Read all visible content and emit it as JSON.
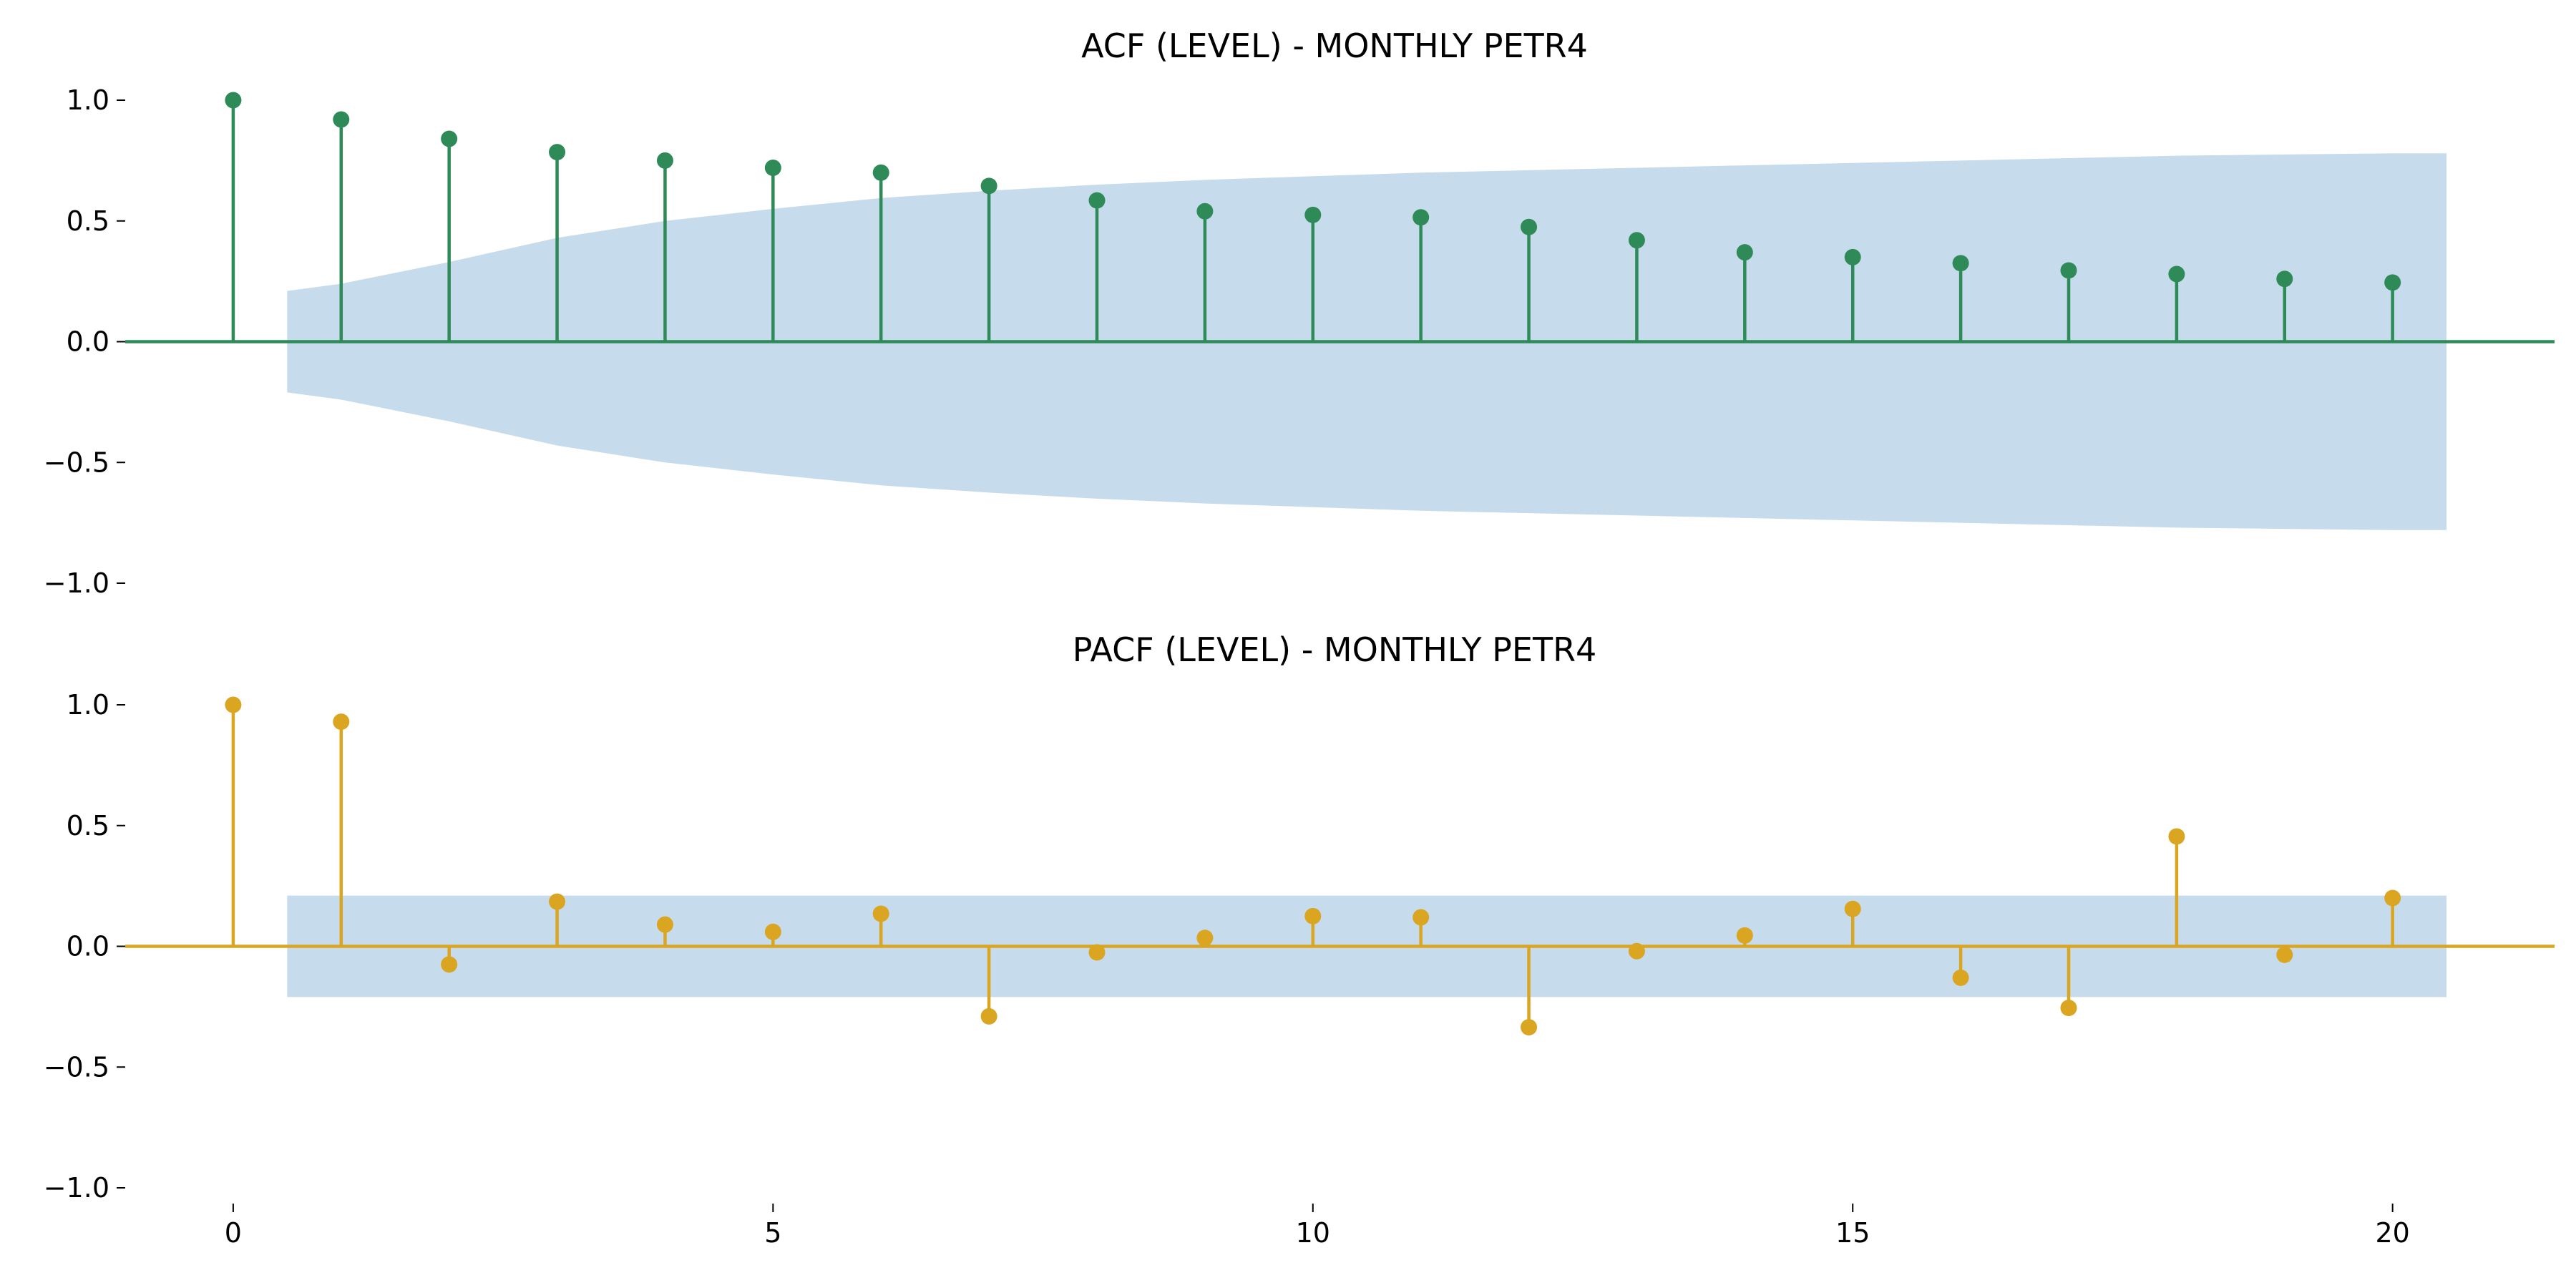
{
  "chart_data": [
    {
      "type": "stem",
      "title": "ACF (LEVEL) - MONTHLY PETR4",
      "xlabel": "",
      "ylabel": "",
      "ylim": [
        -1.0,
        1.0
      ],
      "xlim": [
        -1,
        21.5
      ],
      "yticks": [
        1.0,
        0.5,
        0.0,
        -0.5,
        -1.0
      ],
      "ytick_labels": [
        "1.0",
        "0.5",
        "0.0",
        "−0.5",
        "−1.0"
      ],
      "xticks": [],
      "grid": false,
      "color": "#2e8b57",
      "band_color": "#c6dbec",
      "x": [
        0,
        1,
        2,
        3,
        4,
        5,
        6,
        7,
        8,
        9,
        10,
        11,
        12,
        13,
        14,
        15,
        16,
        17,
        18,
        19,
        20
      ],
      "values": [
        1.0,
        0.92,
        0.84,
        0.785,
        0.75,
        0.72,
        0.7,
        0.645,
        0.585,
        0.54,
        0.525,
        0.515,
        0.475,
        0.42,
        0.37,
        0.35,
        0.325,
        0.295,
        0.28,
        0.26,
        0.245
      ],
      "confidence_band": {
        "x": [
          0.5,
          1,
          2,
          3,
          4,
          5,
          6,
          7,
          8,
          9,
          10,
          11,
          12,
          13,
          14,
          15,
          16,
          17,
          18,
          19,
          20,
          20.5
        ],
        "upper": [
          0.21,
          0.24,
          0.33,
          0.43,
          0.5,
          0.55,
          0.595,
          0.625,
          0.65,
          0.67,
          0.685,
          0.7,
          0.71,
          0.72,
          0.73,
          0.74,
          0.75,
          0.76,
          0.77,
          0.775,
          0.78,
          0.78
        ]
      }
    },
    {
      "type": "stem",
      "title": "PACF (LEVEL) - MONTHLY PETR4",
      "xlabel": "",
      "ylabel": "",
      "ylim": [
        -1.0,
        1.0
      ],
      "xlim": [
        -1,
        21.5
      ],
      "yticks": [
        1.0,
        0.5,
        0.0,
        -0.5,
        -1.0
      ],
      "ytick_labels": [
        "1.0",
        "0.5",
        "0.0",
        "−0.5",
        "−1.0"
      ],
      "xticks": [
        0,
        5,
        10,
        15,
        20
      ],
      "xtick_labels": [
        "0",
        "5",
        "10",
        "15",
        "20"
      ],
      "grid": false,
      "color": "#daa520",
      "band_color": "#c6dbec",
      "x": [
        0,
        1,
        2,
        3,
        4,
        5,
        6,
        7,
        8,
        9,
        10,
        11,
        12,
        13,
        14,
        15,
        16,
        17,
        18,
        19,
        20
      ],
      "values": [
        1.0,
        0.93,
        -0.075,
        0.185,
        0.09,
        0.06,
        0.135,
        -0.29,
        -0.025,
        0.035,
        0.125,
        0.12,
        -0.335,
        -0.02,
        0.045,
        0.155,
        -0.13,
        -0.255,
        0.455,
        -0.035,
        0.2
      ],
      "confidence_band": {
        "x": [
          0.5,
          20.5
        ],
        "upper": [
          0.21,
          0.21
        ]
      }
    }
  ]
}
